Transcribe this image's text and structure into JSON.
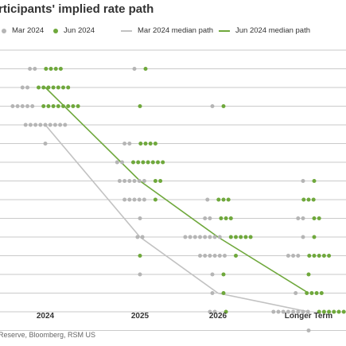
{
  "title": "rticipants' implied rate path",
  "source": "Reserve, Bloomberg, RSM US",
  "legend": [
    {
      "label": "Mar 2024",
      "kind": "dot",
      "color": "#b5b5b5"
    },
    {
      "label": "Jun 2024",
      "kind": "dot",
      "color": "#6fa83c"
    },
    {
      "label": "Mar 2024 median path",
      "kind": "line",
      "color": "#c2c2c2"
    },
    {
      "label": "Jun 2024 median path",
      "kind": "line",
      "color": "#6fa83c"
    }
  ],
  "chart_data": {
    "type": "scatter",
    "title": "",
    "categories": [
      "2024",
      "2025",
      "2026",
      "Longer Term"
    ],
    "ylim": [
      1.625,
      6.125
    ],
    "y_levels": [
      5.875,
      5.625,
      5.375,
      5.125,
      4.875,
      4.625,
      4.375,
      4.125,
      3.875,
      3.625,
      3.375,
      3.125,
      2.875,
      2.625,
      2.375,
      2.125,
      1.875
    ],
    "grid": true,
    "colors": {
      "mar": "#b5b5b5",
      "jun": "#6fa83c"
    },
    "dots": [
      {
        "category": "2024",
        "y": 5.875,
        "mar": 2,
        "jun": 4
      },
      {
        "category": "2024",
        "y": 5.625,
        "mar": 2,
        "jun": 7
      },
      {
        "category": "2024",
        "y": 5.375,
        "mar": 5,
        "jun": 8
      },
      {
        "category": "2024",
        "y": 5.125,
        "mar": 9,
        "jun": 0
      },
      {
        "category": "2024",
        "y": 4.875,
        "mar": 1,
        "jun": 0
      },
      {
        "category": "2025",
        "y": 5.875,
        "mar": 1,
        "jun": 1
      },
      {
        "category": "2025",
        "y": 5.375,
        "mar": 0,
        "jun": 1
      },
      {
        "category": "2025",
        "y": 4.875,
        "mar": 2,
        "jun": 4
      },
      {
        "category": "2025",
        "y": 4.625,
        "mar": 2,
        "jun": 7
      },
      {
        "category": "2025",
        "y": 4.375,
        "mar": 6,
        "jun": 2
      },
      {
        "category": "2025",
        "y": 4.125,
        "mar": 5,
        "jun": 1
      },
      {
        "category": "2025",
        "y": 3.875,
        "mar": 1,
        "jun": 0
      },
      {
        "category": "2025",
        "y": 3.625,
        "mar": 2,
        "jun": 0
      },
      {
        "category": "2025",
        "y": 3.375,
        "mar": 0,
        "jun": 1
      },
      {
        "category": "2025",
        "y": 3.125,
        "mar": 1,
        "jun": 0
      },
      {
        "category": "2026",
        "y": 5.375,
        "mar": 1,
        "jun": 1
      },
      {
        "category": "2026",
        "y": 4.125,
        "mar": 1,
        "jun": 3
      },
      {
        "category": "2026",
        "y": 3.875,
        "mar": 2,
        "jun": 3
      },
      {
        "category": "2026",
        "y": 3.625,
        "mar": 8,
        "jun": 5
      },
      {
        "category": "2026",
        "y": 3.375,
        "mar": 6,
        "jun": 1
      },
      {
        "category": "2026",
        "y": 3.125,
        "mar": 1,
        "jun": 1
      },
      {
        "category": "2026",
        "y": 2.875,
        "mar": 1,
        "jun": 1
      },
      {
        "category": "2026",
        "y": 2.625,
        "mar": 2,
        "jun": 1
      },
      {
        "category": "Longer Term",
        "y": 4.375,
        "mar": 1,
        "jun": 1
      },
      {
        "category": "Longer Term",
        "y": 4.125,
        "mar": 0,
        "jun": 3
      },
      {
        "category": "Longer Term",
        "y": 3.875,
        "mar": 2,
        "jun": 2
      },
      {
        "category": "Longer Term",
        "y": 3.625,
        "mar": 1,
        "jun": 1
      },
      {
        "category": "Longer Term",
        "y": 3.375,
        "mar": 3,
        "jun": 5
      },
      {
        "category": "Longer Term",
        "y": 3.125,
        "mar": 0,
        "jun": 1
      },
      {
        "category": "Longer Term",
        "y": 2.875,
        "mar": 1,
        "jun": 4
      },
      {
        "category": "Longer Term",
        "y": 2.625,
        "mar": 8,
        "jun": 6
      },
      {
        "category": "Longer Term",
        "y": 2.375,
        "mar": 1,
        "jun": 0
      }
    ],
    "series": [
      {
        "name": "Mar 2024 median path",
        "color": "#c2c2c2",
        "points": [
          [
            "2024",
            5.125
          ],
          [
            "2025",
            3.625
          ],
          [
            "2026",
            2.875
          ],
          [
            "Longer Term",
            2.625
          ]
        ]
      },
      {
        "name": "Jun 2024 median path",
        "color": "#6fa83c",
        "points": [
          [
            "2024",
            5.625
          ],
          [
            "2025",
            4.375
          ],
          [
            "2026",
            3.625
          ],
          [
            "Longer Term",
            2.875
          ]
        ]
      }
    ]
  }
}
